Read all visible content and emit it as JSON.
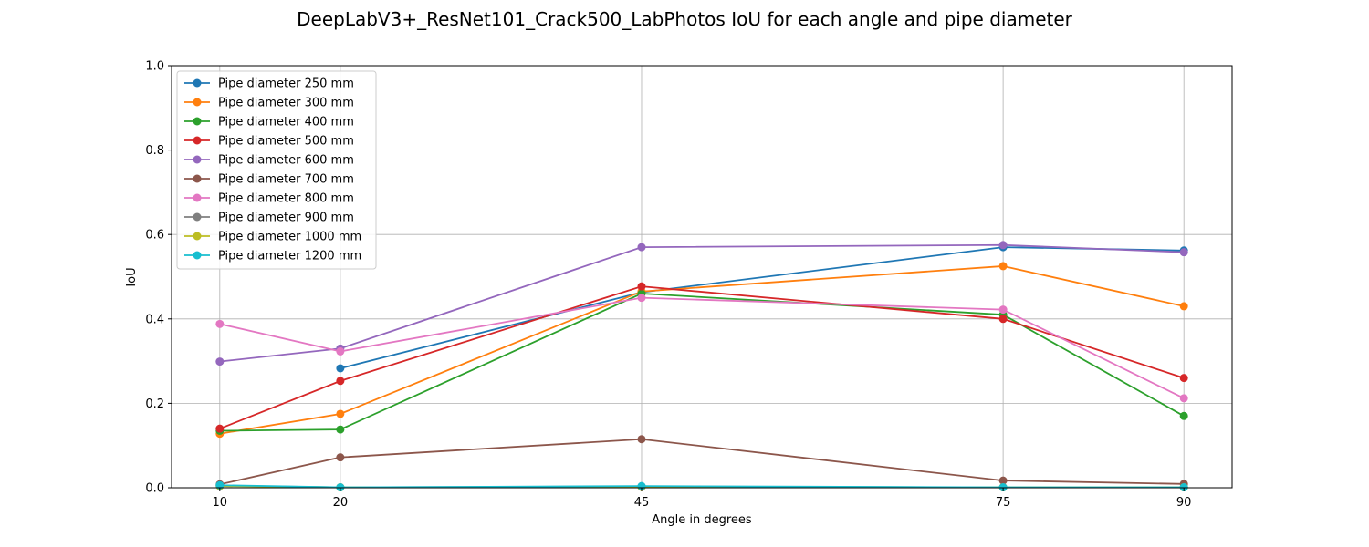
{
  "chart_data": {
    "type": "line",
    "title": "DeepLabV3+_ResNet101_Crack500_LabPhotos IoU for each angle and pipe diameter",
    "xlabel": "Angle in degrees",
    "ylabel": "IoU",
    "x": [
      10,
      20,
      45,
      75,
      90
    ],
    "xticks": [
      "10",
      "20",
      "45",
      "75",
      "90"
    ],
    "yticks": [
      "0.0",
      "0.2",
      "0.4",
      "0.6",
      "0.8",
      "1.0"
    ],
    "xlim": [
      6,
      94
    ],
    "ylim": [
      0,
      1
    ],
    "grid": true,
    "legend_position": "upper-left",
    "series": [
      {
        "name": "Pipe diameter 250 mm",
        "color": "#1f77b4",
        "values": [
          null,
          0.283,
          0.463,
          0.57,
          0.562
        ]
      },
      {
        "name": "Pipe diameter 300 mm",
        "color": "#ff7f0e",
        "values": [
          0.128,
          0.175,
          0.465,
          0.525,
          0.43
        ]
      },
      {
        "name": "Pipe diameter 400 mm",
        "color": "#2ca02c",
        "values": [
          0.135,
          0.138,
          0.46,
          0.41,
          0.17
        ]
      },
      {
        "name": "Pipe diameter 500 mm",
        "color": "#d62728",
        "values": [
          0.14,
          0.253,
          0.477,
          0.4,
          0.26
        ]
      },
      {
        "name": "Pipe diameter 600 mm",
        "color": "#9467bd",
        "values": [
          0.299,
          0.33,
          0.57,
          0.575,
          0.558
        ]
      },
      {
        "name": "Pipe diameter 700 mm",
        "color": "#8c564b",
        "values": [
          0.008,
          0.072,
          0.115,
          0.017,
          0.009
        ]
      },
      {
        "name": "Pipe diameter 800 mm",
        "color": "#e377c2",
        "values": [
          0.388,
          0.323,
          0.45,
          0.422,
          0.212
        ]
      },
      {
        "name": "Pipe diameter 900 mm",
        "color": "#7f7f7f",
        "values": [
          0.005,
          0.001,
          0.003,
          0.001,
          0.001
        ]
      },
      {
        "name": "Pipe diameter 1000 mm",
        "color": "#bcbd22",
        "values": [
          0.004,
          0.001,
          0.002,
          0.001,
          0.001
        ]
      },
      {
        "name": "Pipe diameter 1200 mm",
        "color": "#17becf",
        "values": [
          0.006,
          0.001,
          0.004,
          0.001,
          0.001
        ]
      }
    ]
  }
}
